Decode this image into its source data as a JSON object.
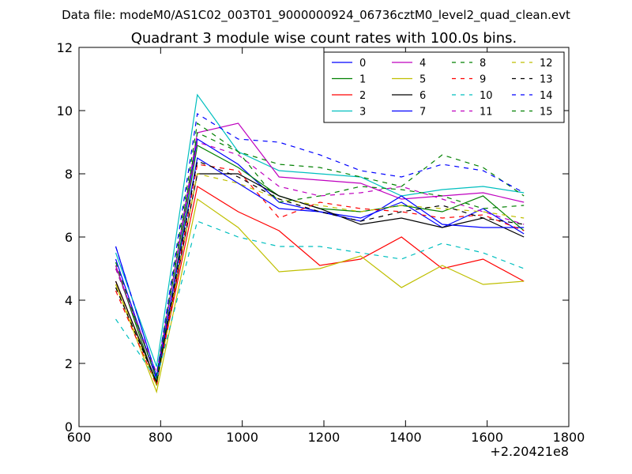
{
  "figure": {
    "suptitle": "Data file: modeM0/AS1C02_003T01_9000000924_06736cztM0_level2_quad_clean.evt"
  },
  "chart_data": {
    "type": "line",
    "title": "Quadrant 3 module wise count rates with 100.0s bins.",
    "xlabel": "",
    "ylabel": "",
    "x_offset_label": "+2.20421e8",
    "xlim": [
      600,
      1800
    ],
    "ylim": [
      0,
      12
    ],
    "xticks": [
      600,
      800,
      1000,
      1200,
      1400,
      1600,
      1800
    ],
    "yticks": [
      0,
      2,
      4,
      6,
      8,
      10,
      12
    ],
    "grid": false,
    "legend": {
      "placement": "top-right",
      "columns": 4
    },
    "x": [
      690,
      790,
      890,
      990,
      1090,
      1190,
      1290,
      1390,
      1490,
      1590,
      1690
    ],
    "series": [
      {
        "name": "0",
        "color": "#0000ff",
        "dash": "solid",
        "values": [
          5.7,
          1.6,
          9.1,
          8.3,
          7.1,
          6.8,
          6.6,
          7.1,
          6.3,
          6.9,
          6.1
        ]
      },
      {
        "name": "1",
        "color": "#008000",
        "dash": "solid",
        "values": [
          5.1,
          1.3,
          8.9,
          8.2,
          7.3,
          6.9,
          6.8,
          7.0,
          6.8,
          7.3,
          6.2
        ]
      },
      {
        "name": "2",
        "color": "#ff0000",
        "dash": "solid",
        "values": [
          4.6,
          1.4,
          7.6,
          6.8,
          6.2,
          5.1,
          5.3,
          6.0,
          5.0,
          5.3,
          4.6
        ]
      },
      {
        "name": "3",
        "color": "#00bfbf",
        "dash": "solid",
        "values": [
          5.5,
          1.9,
          10.5,
          8.7,
          8.1,
          8.0,
          7.9,
          7.3,
          7.5,
          7.6,
          7.4
        ]
      },
      {
        "name": "4",
        "color": "#bf00bf",
        "dash": "solid",
        "values": [
          5.1,
          1.5,
          9.3,
          9.6,
          7.9,
          7.8,
          7.7,
          7.2,
          7.3,
          7.4,
          7.1
        ]
      },
      {
        "name": "5",
        "color": "#bfbf00",
        "dash": "solid",
        "values": [
          4.5,
          1.1,
          7.2,
          6.3,
          4.9,
          5.0,
          5.4,
          4.4,
          5.1,
          4.5,
          4.6
        ]
      },
      {
        "name": "6",
        "color": "#000000",
        "dash": "solid",
        "values": [
          4.6,
          1.4,
          8.0,
          8.0,
          7.3,
          6.9,
          6.4,
          6.6,
          6.3,
          6.6,
          6.0
        ]
      },
      {
        "name": "7",
        "color": "#0000ff",
        "dash": "solid",
        "values": [
          5.3,
          1.5,
          8.5,
          7.7,
          6.9,
          6.8,
          6.5,
          7.3,
          6.4,
          6.3,
          6.3
        ]
      },
      {
        "name": "8",
        "color": "#008000",
        "dash": "dashed",
        "values": [
          5.0,
          1.6,
          9.6,
          8.7,
          8.3,
          8.2,
          7.9,
          7.6,
          8.6,
          8.2,
          7.3
        ]
      },
      {
        "name": "9",
        "color": "#ff0000",
        "dash": "dashed",
        "values": [
          4.3,
          1.3,
          8.3,
          8.1,
          6.6,
          7.1,
          6.9,
          6.8,
          6.6,
          6.7,
          6.2
        ]
      },
      {
        "name": "10",
        "color": "#00bfbf",
        "dash": "dashed",
        "values": [
          3.4,
          1.5,
          6.5,
          6.0,
          5.7,
          5.7,
          5.5,
          5.3,
          5.8,
          5.5,
          5.0
        ]
      },
      {
        "name": "11",
        "color": "#bf00bf",
        "dash": "dashed",
        "values": [
          5.0,
          1.7,
          9.0,
          8.6,
          7.6,
          7.3,
          7.4,
          7.6,
          7.2,
          6.8,
          6.4
        ]
      },
      {
        "name": "12",
        "color": "#bfbf00",
        "dash": "dashed",
        "values": [
          4.5,
          1.3,
          8.0,
          7.7,
          7.2,
          7.0,
          6.8,
          7.0,
          6.9,
          6.8,
          6.6
        ]
      },
      {
        "name": "13",
        "color": "#000000",
        "dash": "dashed",
        "values": [
          4.4,
          1.4,
          8.4,
          7.9,
          7.2,
          6.8,
          6.5,
          6.8,
          7.0,
          6.6,
          6.4
        ]
      },
      {
        "name": "14",
        "color": "#0000ff",
        "dash": "dashed",
        "values": [
          5.7,
          1.6,
          9.9,
          9.1,
          9.0,
          8.6,
          8.1,
          7.9,
          8.3,
          8.1,
          7.4
        ]
      },
      {
        "name": "15",
        "color": "#008000",
        "dash": "dashed",
        "values": [
          5.2,
          1.5,
          9.3,
          8.7,
          7.1,
          7.3,
          7.6,
          7.5,
          7.3,
          6.9,
          7.0
        ]
      }
    ]
  }
}
